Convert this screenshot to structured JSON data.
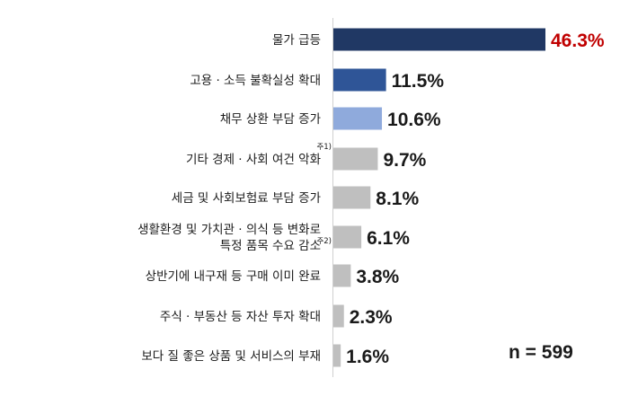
{
  "chart_data": {
    "type": "bar",
    "orientation": "horizontal",
    "categories": [
      "물가 급등",
      "고용 · 소득 불확실성 확대",
      "채무 상환 부담 증가",
      "기타 경제 · 사회 여건 악화",
      "세금 및 사회보험료 부담 증가",
      "생활환경 및 가치관 · 의식 등 변화로 특정 품목 수요 감소",
      "상반기에 내구재 등 구매 이미 완료",
      "주식 · 부동산 등 자산 투자 확대",
      "보다 질 좋은 상품 및 서비스의 부재"
    ],
    "category_lines": [
      [
        "물가 급등"
      ],
      [
        "고용 · 소득 불확실성 확대"
      ],
      [
        "채무 상환 부담 증가"
      ],
      [
        "기타 경제 · 사회 여건 악화"
      ],
      [
        "세금 및 사회보험료 부담 증가"
      ],
      [
        "생활환경 및 가치관 · 의식 등 변화로",
        "특정 품목 수요 감소"
      ],
      [
        "상반기에 내구재 등 구매 이미 완료"
      ],
      [
        "주식 · 부동산 등 자산 투자 확대"
      ],
      [
        "보다 질 좋은 상품 및 서비스의 부재"
      ]
    ],
    "footnotes": [
      "",
      "",
      "",
      "주1)",
      "",
      "주2)",
      "",
      "",
      ""
    ],
    "values": [
      46.3,
      11.5,
      10.6,
      9.7,
      8.1,
      6.1,
      3.8,
      2.3,
      1.6
    ],
    "value_labels": [
      "46.3%",
      "11.5%",
      "10.6%",
      "9.7%",
      "8.1%",
      "6.1%",
      "3.8%",
      "2.3%",
      "1.6%"
    ],
    "bar_colors": [
      "#203864",
      "#2f5597",
      "#8faadc",
      "#bfbfbf",
      "#bfbfbf",
      "#bfbfbf",
      "#bfbfbf",
      "#bfbfbf",
      "#bfbfbf"
    ],
    "label_colors": [
      "#c00000",
      "#1a1a1a",
      "#1a1a1a",
      "#1a1a1a",
      "#1a1a1a",
      "#1a1a1a",
      "#1a1a1a",
      "#1a1a1a",
      "#1a1a1a"
    ],
    "xlim": [
      0,
      46.3
    ],
    "grid": false,
    "title": "",
    "xlabel": "",
    "ylabel": ""
  },
  "sample_size_label": "n = 599"
}
